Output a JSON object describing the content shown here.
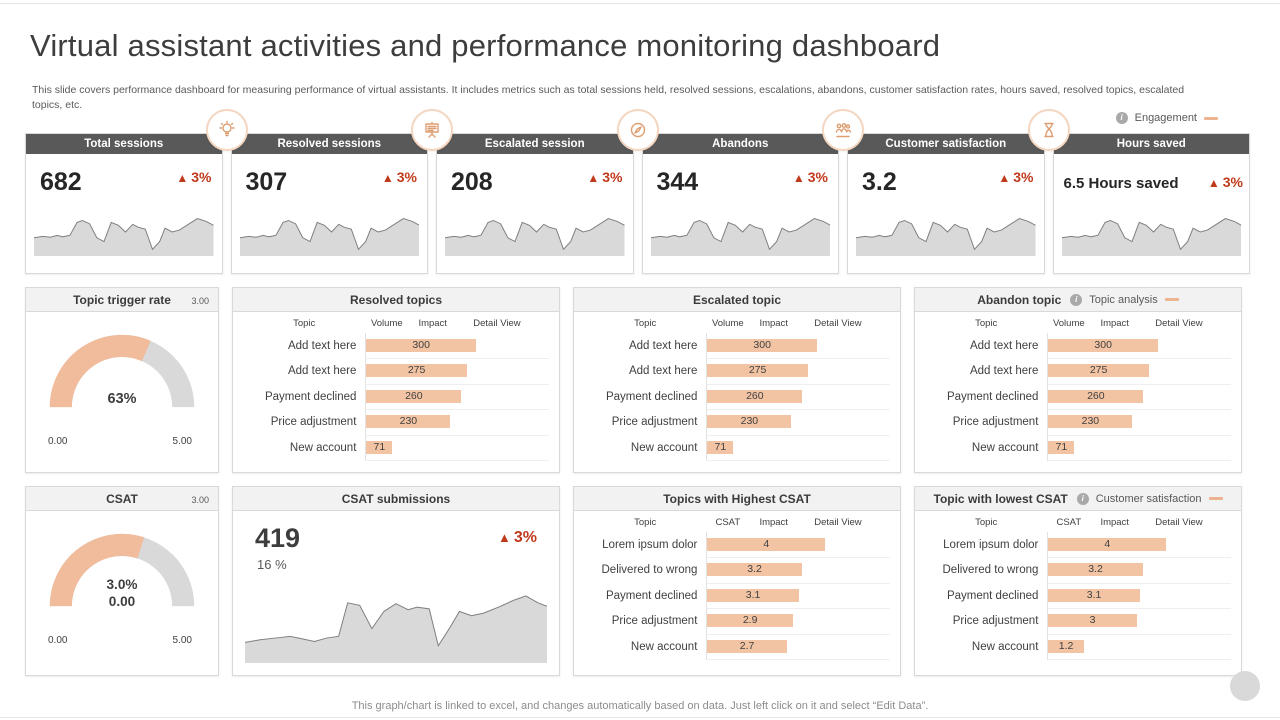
{
  "title": "Virtual assistant activities and performance monitoring dashboard",
  "subtitle": "This slide covers performance dashboard for measuring performance of virtual assistants. It includes metrics such as total sessions held, resolved sessions, escalations, abandons, customer satisfaction rates, hours saved, resolved topics, escalated topics, etc.",
  "footer_note": "This graph/chart is linked to excel,  and changes automatically based on data. Just left click on it and select “Edit Data”.",
  "glyphs": {
    "up_arrow": "▲",
    "info": "i"
  },
  "legends": {
    "engagement": "Engagement",
    "topic_analysis": "Topic analysis",
    "customer_satisfaction": "Customer satisfaction"
  },
  "colors": {
    "header_dark": "#595959",
    "panel_header_bg": "#f2f2f2",
    "bar_fill": "#f2c4a4",
    "gauge_fill": "#f0bc9c",
    "gauge_track": "#d9d9d9",
    "spark_fill": "#d9d9d9",
    "spark_stroke": "#7f7f7f",
    "delta_red": "#c0391b",
    "icon_ring": "#f4d6c1",
    "icon_glyph": "#dd9e71",
    "border": "#d9d9d9"
  },
  "kpis": [
    {
      "label": "Total sessions",
      "value": "682",
      "delta": "3%",
      "icon": "bulb-icon"
    },
    {
      "label": "Resolved  sessions",
      "value": "307",
      "delta": "3%",
      "icon": "presentation-board-icon"
    },
    {
      "label": "Escalated session",
      "value": "208",
      "delta": "3%",
      "icon": "compass-icon"
    },
    {
      "label": "Abandons",
      "value": "344",
      "delta": "3%",
      "icon": "people-icon"
    },
    {
      "label": "Customer satisfaction",
      "value": "3.2",
      "delta": "3%",
      "icon": "hourglass-icon"
    },
    {
      "label": "Hours saved",
      "value": "6.5 Hours saved",
      "delta": "3%",
      "icon": null
    }
  ],
  "chart_data": [
    {
      "id": "kpi-sparkline",
      "type": "area",
      "title": "KPI trend sparkline (identical decorative trend on all six KPI cards)",
      "note": "no axis labels shown; points are normalized x(0-100) / y(0-100 from top)",
      "points": [
        [
          0,
          62
        ],
        [
          5,
          59
        ],
        [
          9,
          61
        ],
        [
          13,
          57
        ],
        [
          16,
          60
        ],
        [
          20,
          57
        ],
        [
          24,
          30
        ],
        [
          27,
          26
        ],
        [
          31,
          33
        ],
        [
          35,
          62
        ],
        [
          39,
          70
        ],
        [
          43,
          30
        ],
        [
          47,
          36
        ],
        [
          51,
          50
        ],
        [
          55,
          34
        ],
        [
          58,
          40
        ],
        [
          62,
          44
        ],
        [
          66,
          86
        ],
        [
          70,
          70
        ],
        [
          73,
          42
        ],
        [
          77,
          50
        ],
        [
          81,
          46
        ],
        [
          86,
          34
        ],
        [
          91,
          22
        ],
        [
          96,
          28
        ],
        [
          100,
          36
        ]
      ]
    },
    {
      "id": "topic-trigger-rate-gauge",
      "type": "gauge",
      "title": "Topic trigger rate",
      "value_label": "63%",
      "value_pct": 0.63,
      "min": "0.00",
      "max": "5.00",
      "ref": "3.00"
    },
    {
      "id": "resolved-topics",
      "type": "bar",
      "title": "Resolved topics",
      "columns": [
        "Topic",
        "Volume",
        "Impact",
        "Detail View"
      ],
      "categories": [
        "Add text here",
        "Add text here",
        "Payment declined",
        "Price adjustment",
        "New account"
      ],
      "values": [
        300,
        275,
        260,
        230,
        71
      ],
      "xmax": 500
    },
    {
      "id": "escalated-topic",
      "type": "bar",
      "title": "Escalated topic",
      "columns": [
        "Topic",
        "Volume",
        "Impact",
        "Detail View"
      ],
      "categories": [
        "Add text here",
        "Add text here",
        "Payment declined",
        "Price adjustment",
        "New account"
      ],
      "values": [
        300,
        275,
        260,
        230,
        71
      ],
      "xmax": 500
    },
    {
      "id": "abandon-topic",
      "type": "bar",
      "title": "Abandon topic",
      "columns": [
        "Topic",
        "Volume",
        "Impact",
        "Detail View"
      ],
      "categories": [
        "Add text here",
        "Add text here",
        "Payment declined",
        "Price adjustment",
        "New account"
      ],
      "values": [
        300,
        275,
        260,
        230,
        71
      ],
      "xmax": 500
    },
    {
      "id": "csat-gauge",
      "type": "gauge",
      "title": "CSAT",
      "value_label": "3.0%",
      "value_label2": "0.00",
      "value_pct": 0.6,
      "min": "0.00",
      "max": "5.00",
      "ref": "3.00"
    },
    {
      "id": "csat-submissions",
      "type": "area",
      "title": "CSAT submissions",
      "value": "419",
      "subvalue": "16 %",
      "delta": "3%",
      "note": "no axis labels shown; points are normalized x(0-100) / y(0-100 from top)",
      "points": [
        [
          0,
          76
        ],
        [
          5,
          73
        ],
        [
          10,
          71
        ],
        [
          15,
          69
        ],
        [
          19,
          72
        ],
        [
          23,
          75
        ],
        [
          27,
          71
        ],
        [
          31,
          69
        ],
        [
          34,
          30
        ],
        [
          38,
          33
        ],
        [
          42,
          60
        ],
        [
          46,
          40
        ],
        [
          50,
          31
        ],
        [
          54,
          38
        ],
        [
          57,
          35
        ],
        [
          61,
          37
        ],
        [
          64,
          80
        ],
        [
          68,
          58
        ],
        [
          71,
          40
        ],
        [
          75,
          45
        ],
        [
          79,
          42
        ],
        [
          84,
          35
        ],
        [
          89,
          27
        ],
        [
          93,
          22
        ],
        [
          97,
          30
        ],
        [
          100,
          34
        ]
      ]
    },
    {
      "id": "topics-highest-csat",
      "type": "bar",
      "title": "Topics with Highest CSAT",
      "columns": [
        "Topic",
        "CSAT",
        "Impact",
        "Detail View"
      ],
      "categories": [
        "Lorem ipsum dolor",
        "Delivered to wrong",
        "Payment declined",
        "Price adjustment",
        "New account"
      ],
      "values": [
        4,
        3.2,
        3.1,
        2.9,
        2.7
      ],
      "xmax": 6.2
    },
    {
      "id": "topic-lowest-csat",
      "type": "bar",
      "title": "Topic with lowest CSAT",
      "columns": [
        "Topic",
        "CSAT",
        "Impact",
        "Detail View"
      ],
      "categories": [
        "Lorem ipsum dolor",
        "Delivered to wrong",
        "Payment declined",
        "Price adjustment",
        "New account"
      ],
      "values": [
        4,
        3.2,
        3.1,
        3.0,
        1.2
      ],
      "xmax": 6.2
    }
  ]
}
